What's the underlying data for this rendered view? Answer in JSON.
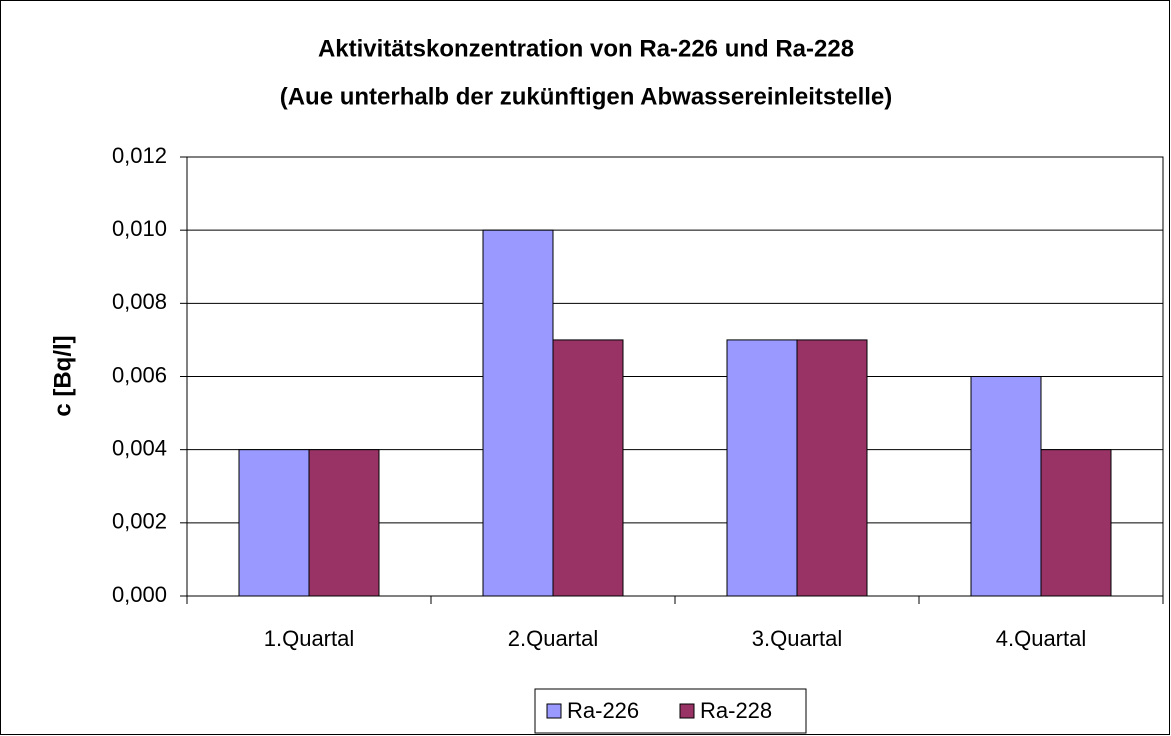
{
  "chart_data": {
    "type": "bar",
    "title": "Aktivitätskonzentration von Ra-226 und Ra-228",
    "subtitle": "(Aue unterhalb der zukünftigen Abwassereinleitstelle)",
    "y_label": "c [Bq/l]",
    "categories": [
      "1.Quartal",
      "2.Quartal",
      "3.Quartal",
      "4.Quartal"
    ],
    "series": [
      {
        "name": "Ra-226",
        "color": "#9999ff",
        "values": [
          0.004,
          0.01,
          0.007,
          0.006
        ]
      },
      {
        "name": "Ra-228",
        "color": "#993366",
        "values": [
          0.004,
          0.007,
          0.007,
          0.004
        ]
      }
    ],
    "ylim": [
      0,
      0.012
    ],
    "yticks": [
      {
        "value": 0,
        "label": "0,000"
      },
      {
        "value": 0.002,
        "label": "0,002"
      },
      {
        "value": 0.004,
        "label": "0,004"
      },
      {
        "value": 0.006,
        "label": "0,006"
      },
      {
        "value": 0.008,
        "label": "0,008"
      },
      {
        "value": 0.01,
        "label": "0,010"
      },
      {
        "value": 0.012,
        "label": "0,012"
      }
    ],
    "grid": true,
    "legend": "bottom"
  }
}
